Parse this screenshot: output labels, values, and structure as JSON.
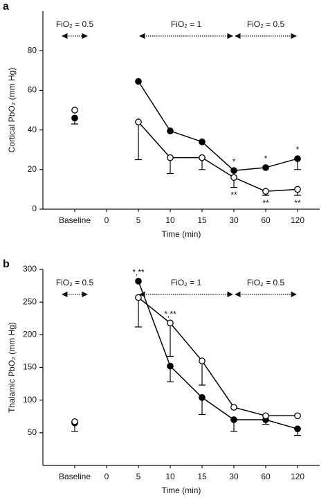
{
  "chart_data": [
    {
      "type": "line",
      "panel_label": "a",
      "ylabel": "Cortical PbO₂ (mm Hg)",
      "xlabel": "Time (min)",
      "categories": [
        "Baseline",
        "0",
        "5",
        "10",
        "15",
        "30",
        "60",
        "120"
      ],
      "ylim": [
        0,
        100
      ],
      "yticks": [
        0,
        20,
        40,
        60,
        80
      ],
      "series": [
        {
          "color": "#000000",
          "marker_fill": "#000000",
          "values": [
            46,
            null,
            64.5,
            39.5,
            34,
            19.5,
            21,
            25.5
          ],
          "errors": [
            3,
            null,
            null,
            null,
            null,
            null,
            null,
            5.5
          ]
        },
        {
          "color": "#000000",
          "marker_fill": "#ffffff",
          "values": [
            50,
            null,
            44,
            26,
            26,
            16,
            9,
            10
          ],
          "errors": [
            null,
            null,
            19,
            8,
            6,
            5,
            2,
            3
          ]
        }
      ],
      "annotations": [
        {
          "text": "*",
          "at": "30",
          "position": "above"
        },
        {
          "text": "*",
          "at": "60",
          "position": "above"
        },
        {
          "text": "*",
          "at": "120",
          "position": "above"
        },
        {
          "text": "**",
          "at": "30",
          "position": "below"
        },
        {
          "text": "**",
          "at": "60",
          "position": "below"
        },
        {
          "text": "**",
          "at": "120",
          "position": "below"
        }
      ],
      "phases": [
        {
          "label": "FiO₂ = 0.5",
          "from": "Baseline",
          "to": "Baseline"
        },
        {
          "label": "FiO₂ = 1",
          "from": "5",
          "to": "30"
        },
        {
          "label": "FiO₂ = 0.5",
          "from": "30",
          "to": "120"
        }
      ]
    },
    {
      "type": "line",
      "panel_label": "b",
      "ylabel": "Thalamic PbO₂ (mm Hg)",
      "xlabel": "Time (min)",
      "categories": [
        "Baseline",
        "0",
        "5",
        "10",
        "15",
        "30",
        "60",
        "120"
      ],
      "ylim": [
        0,
        300
      ],
      "yticks": [
        50,
        100,
        150,
        200,
        250,
        300
      ],
      "series": [
        {
          "color": "#000000",
          "marker_fill": "#000000",
          "values": [
            65,
            null,
            282,
            152,
            104,
            70,
            70,
            56
          ],
          "errors": [
            13,
            null,
            null,
            24,
            26,
            18,
            7,
            10
          ]
        },
        {
          "color": "#000000",
          "marker_fill": "#ffffff",
          "values": [
            67,
            null,
            257,
            218,
            160,
            89,
            76,
            76
          ],
          "errors": [
            null,
            null,
            45,
            51,
            37,
            null,
            null,
            null
          ]
        }
      ],
      "annotations": [
        {
          "text": "*,**",
          "at": "5",
          "position": "above"
        },
        {
          "text": "*,**",
          "at": "10",
          "position": "above"
        }
      ],
      "phases": [
        {
          "label": "FiO₂ = 0.5",
          "from": "Baseline",
          "to": "Baseline"
        },
        {
          "label": "FiO₂ = 1",
          "from": "5",
          "to": "30"
        },
        {
          "label": "FiO₂ = 0.5",
          "from": "30",
          "to": "120"
        }
      ]
    }
  ]
}
